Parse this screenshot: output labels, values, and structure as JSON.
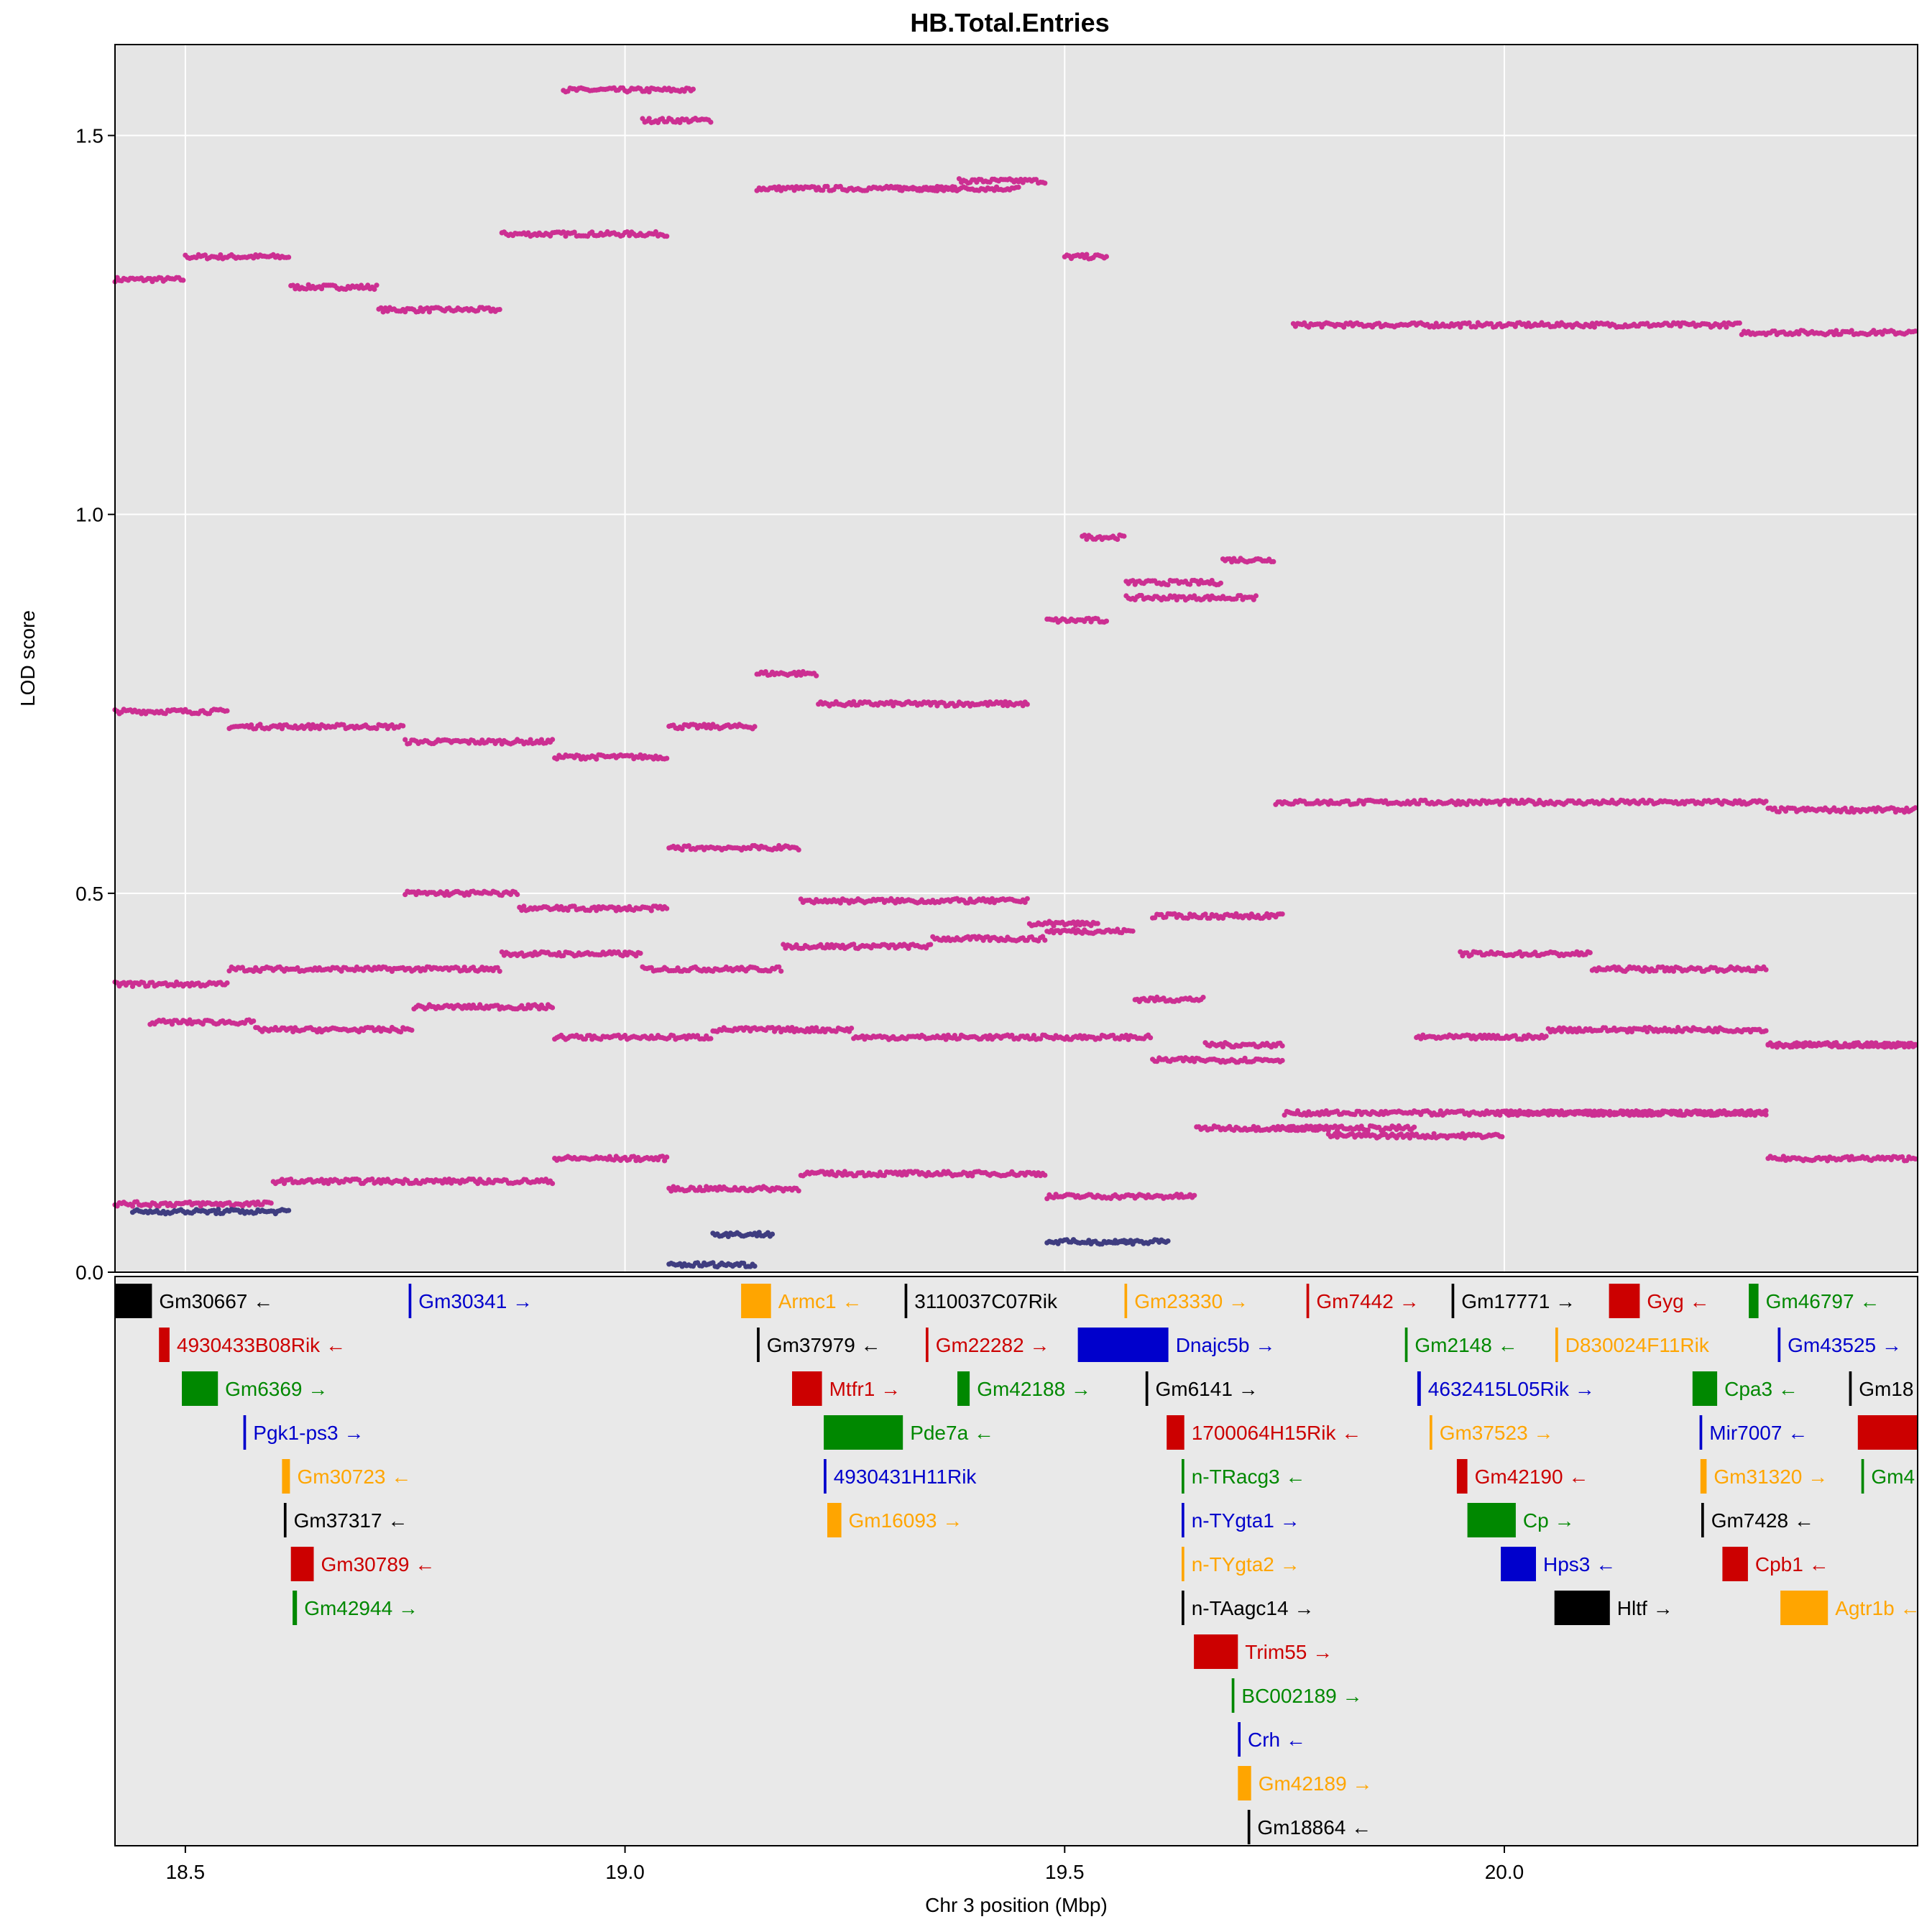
{
  "chart_data": {
    "type": "scatter",
    "title": "HB.Total.Entries",
    "xlabel": "Chr 3 position (Mbp)",
    "ylabel": "LOD score",
    "xlim": [
      18.42,
      20.47
    ],
    "ylim": [
      0,
      1.62
    ],
    "x_ticks": [
      "18.5",
      "19.0",
      "19.5",
      "20.0"
    ],
    "x_tick_values": [
      18.5,
      19.0,
      19.5,
      20.0
    ],
    "y_ticks": [
      "0.0",
      "0.5",
      "1.0",
      "1.5"
    ],
    "y_tick_values": [
      0.0,
      0.5,
      1.0,
      1.5
    ],
    "grid": true,
    "legend": "none",
    "colors": {
      "magenta": "#CC2F92",
      "navy": "#3F3D80",
      "black": "#000000",
      "red": "#CC0000",
      "green": "#008800",
      "blue": "#0000CC",
      "orange": "#FFA500"
    },
    "series": [
      {
        "color": "magenta",
        "segments": [
          [
            18.42,
            18.5,
            1.31
          ],
          [
            18.5,
            18.62,
            1.34
          ],
          [
            18.62,
            18.72,
            1.3
          ],
          [
            18.72,
            18.86,
            1.27
          ],
          [
            18.86,
            19.05,
            1.37
          ],
          [
            18.93,
            19.08,
            1.56
          ],
          [
            19.02,
            19.1,
            1.52
          ],
          [
            19.15,
            19.38,
            1.43
          ],
          [
            19.38,
            19.48,
            1.44
          ],
          [
            19.3,
            19.45,
            1.43
          ],
          [
            19.5,
            19.55,
            1.34
          ],
          [
            19.76,
            20.27,
            1.25
          ],
          [
            20.27,
            20.47,
            1.24
          ],
          [
            18.42,
            18.55,
            0.74
          ],
          [
            18.55,
            18.75,
            0.72
          ],
          [
            18.75,
            18.92,
            0.7
          ],
          [
            18.92,
            19.05,
            0.68
          ],
          [
            19.05,
            19.15,
            0.72
          ],
          [
            19.15,
            19.22,
            0.79
          ],
          [
            19.22,
            19.46,
            0.75
          ],
          [
            19.48,
            19.55,
            0.86
          ],
          [
            19.52,
            19.57,
            0.97
          ],
          [
            19.57,
            19.72,
            0.89
          ],
          [
            19.57,
            19.68,
            0.91
          ],
          [
            19.68,
            19.74,
            0.94
          ],
          [
            19.74,
            20.3,
            0.62
          ],
          [
            20.3,
            20.47,
            0.61
          ],
          [
            18.42,
            18.55,
            0.38
          ],
          [
            18.55,
            18.74,
            0.4
          ],
          [
            18.74,
            18.86,
            0.4
          ],
          [
            18.86,
            19.02,
            0.42
          ],
          [
            19.02,
            19.18,
            0.4
          ],
          [
            19.18,
            19.35,
            0.43
          ],
          [
            19.35,
            19.48,
            0.44
          ],
          [
            19.48,
            19.58,
            0.45
          ],
          [
            19.58,
            19.66,
            0.36
          ],
          [
            19.66,
            19.75,
            0.3
          ],
          [
            19.75,
            19.92,
            0.21
          ],
          [
            19.92,
            20.3,
            0.21
          ],
          [
            20.3,
            20.47,
            0.3
          ],
          [
            18.42,
            18.6,
            0.09
          ],
          [
            18.6,
            18.73,
            0.12
          ],
          [
            18.73,
            18.92,
            0.12
          ],
          [
            18.92,
            19.05,
            0.15
          ],
          [
            19.05,
            19.2,
            0.11
          ],
          [
            19.2,
            19.48,
            0.13
          ],
          [
            19.48,
            19.65,
            0.1
          ],
          [
            19.65,
            19.8,
            0.19
          ],
          [
            19.8,
            20.0,
            0.18
          ],
          [
            20.0,
            20.3,
            0.21
          ],
          [
            20.3,
            20.47,
            0.15
          ],
          [
            18.46,
            18.58,
            0.33
          ],
          [
            18.58,
            18.76,
            0.32
          ],
          [
            18.76,
            18.92,
            0.35
          ],
          [
            18.92,
            19.1,
            0.31
          ],
          [
            19.1,
            19.26,
            0.32
          ],
          [
            19.26,
            19.46,
            0.31
          ],
          [
            19.46,
            19.6,
            0.31
          ],
          [
            19.6,
            19.75,
            0.28
          ],
          [
            19.75,
            19.9,
            0.19
          ],
          [
            19.9,
            20.05,
            0.31
          ],
          [
            20.05,
            20.3,
            0.32
          ],
          [
            20.3,
            20.47,
            0.3
          ],
          [
            18.75,
            18.88,
            0.5
          ],
          [
            18.88,
            19.05,
            0.48
          ],
          [
            19.05,
            19.2,
            0.56
          ],
          [
            19.2,
            19.46,
            0.49
          ],
          [
            19.46,
            19.54,
            0.46
          ],
          [
            19.6,
            19.75,
            0.47
          ],
          [
            19.95,
            20.1,
            0.42
          ],
          [
            20.1,
            20.3,
            0.4
          ]
        ]
      },
      {
        "color": "navy",
        "segments": [
          [
            18.44,
            18.62,
            0.08
          ],
          [
            19.05,
            19.15,
            0.01
          ],
          [
            19.1,
            19.17,
            0.05
          ],
          [
            19.48,
            19.58,
            0.04
          ],
          [
            19.55,
            19.62,
            0.04
          ]
        ]
      }
    ],
    "genes": [
      {
        "name": "Gm30667",
        "start": 18.42,
        "end": 18.462,
        "row": 0,
        "color": "black",
        "arrow": "←"
      },
      {
        "name": "Gm30341",
        "start": 18.754,
        "end": 18.757,
        "row": 0,
        "color": "blue",
        "arrow": "→"
      },
      {
        "name": "Armc1",
        "start": 19.132,
        "end": 19.166,
        "row": 0,
        "color": "orange",
        "arrow": "←"
      },
      {
        "name": "3110037C07Rik",
        "start": 19.318,
        "end": 19.321,
        "row": 0,
        "color": "black",
        "arrow": ""
      },
      {
        "name": "Gm23330",
        "start": 19.568,
        "end": 19.571,
        "row": 0,
        "color": "orange",
        "arrow": "→"
      },
      {
        "name": "Gm7442",
        "start": 19.775,
        "end": 19.778,
        "row": 0,
        "color": "red",
        "arrow": "→"
      },
      {
        "name": "Gm17771",
        "start": 19.94,
        "end": 19.943,
        "row": 0,
        "color": "black",
        "arrow": "→"
      },
      {
        "name": "Gyg",
        "start": 20.119,
        "end": 20.154,
        "row": 0,
        "color": "red",
        "arrow": "←"
      },
      {
        "name": "Gm46797",
        "start": 20.278,
        "end": 20.289,
        "row": 0,
        "color": "green",
        "arrow": "←"
      },
      {
        "name": "4930433B08Rik",
        "start": 18.47,
        "end": 18.482,
        "row": 1,
        "color": "red",
        "arrow": "←"
      },
      {
        "name": "Gm37979",
        "start": 19.15,
        "end": 19.153,
        "row": 1,
        "color": "black",
        "arrow": "←"
      },
      {
        "name": "Gm22282",
        "start": 19.342,
        "end": 19.345,
        "row": 1,
        "color": "red",
        "arrow": "→"
      },
      {
        "name": "Dnajc5b",
        "start": 19.515,
        "end": 19.618,
        "row": 1,
        "color": "blue",
        "arrow": "→"
      },
      {
        "name": "Gm2148",
        "start": 19.887,
        "end": 19.89,
        "row": 1,
        "color": "green",
        "arrow": "←"
      },
      {
        "name": "D830024F11Rik",
        "start": 20.058,
        "end": 20.061,
        "row": 1,
        "color": "orange",
        "arrow": ""
      },
      {
        "name": "Gm43525",
        "start": 20.311,
        "end": 20.314,
        "row": 1,
        "color": "blue",
        "arrow": "→"
      },
      {
        "name": "Gm6369",
        "start": 18.496,
        "end": 18.537,
        "row": 2,
        "color": "green",
        "arrow": "→"
      },
      {
        "name": "Mtfr1",
        "start": 19.19,
        "end": 19.224,
        "row": 2,
        "color": "red",
        "arrow": "→"
      },
      {
        "name": "Gm42188",
        "start": 19.378,
        "end": 19.392,
        "row": 2,
        "color": "green",
        "arrow": "→"
      },
      {
        "name": "Gm6141",
        "start": 19.592,
        "end": 19.595,
        "row": 2,
        "color": "black",
        "arrow": "→"
      },
      {
        "name": "4632415L05Rik",
        "start": 19.901,
        "end": 19.905,
        "row": 2,
        "color": "blue",
        "arrow": "→"
      },
      {
        "name": "Cpa3",
        "start": 20.214,
        "end": 20.242,
        "row": 2,
        "color": "green",
        "arrow": "←"
      },
      {
        "name": "Gm18",
        "start": 20.392,
        "end": 20.395,
        "row": 2,
        "color": "black",
        "arrow": ""
      },
      {
        "name": "Pgk1-ps3",
        "start": 18.566,
        "end": 18.569,
        "row": 3,
        "color": "blue",
        "arrow": "→"
      },
      {
        "name": "Pde7a",
        "start": 19.226,
        "end": 19.316,
        "row": 3,
        "color": "green",
        "arrow": "←"
      },
      {
        "name": "1700064H15Rik",
        "start": 19.616,
        "end": 19.636,
        "row": 3,
        "color": "red",
        "arrow": "←"
      },
      {
        "name": "Gm37523",
        "start": 19.915,
        "end": 19.918,
        "row": 3,
        "color": "orange",
        "arrow": "→"
      },
      {
        "name": "Mir7007",
        "start": 20.222,
        "end": 20.225,
        "row": 3,
        "color": "blue",
        "arrow": "←"
      },
      {
        "name": "Gm30723",
        "start": 18.61,
        "end": 18.619,
        "row": 4,
        "color": "orange",
        "arrow": "←"
      },
      {
        "name": "4930431H11Rik",
        "start": 19.226,
        "end": 19.229,
        "row": 4,
        "color": "blue",
        "arrow": ""
      },
      {
        "name": "n-TRacg3",
        "start": 19.633,
        "end": 19.636,
        "row": 4,
        "color": "green",
        "arrow": "←"
      },
      {
        "name": "Gm42190",
        "start": 19.946,
        "end": 19.958,
        "row": 4,
        "color": "red",
        "arrow": "←"
      },
      {
        "name": "Gm31320",
        "start": 20.223,
        "end": 20.23,
        "row": 4,
        "color": "orange",
        "arrow": "→"
      },
      {
        "name": "Gm4",
        "start": 20.406,
        "end": 20.409,
        "row": 4,
        "color": "green",
        "arrow": ""
      },
      {
        "name": "Gm37317",
        "start": 18.612,
        "end": 18.615,
        "row": 5,
        "color": "black",
        "arrow": "←"
      },
      {
        "name": "Gm16093",
        "start": 19.23,
        "end": 19.246,
        "row": 5,
        "color": "orange",
        "arrow": "→"
      },
      {
        "name": "n-TYgta1",
        "start": 19.633,
        "end": 19.636,
        "row": 5,
        "color": "blue",
        "arrow": "→"
      },
      {
        "name": "Cp",
        "start": 19.958,
        "end": 20.013,
        "row": 5,
        "color": "green",
        "arrow": "→"
      },
      {
        "name": "Gm7428",
        "start": 20.224,
        "end": 20.227,
        "row": 5,
        "color": "black",
        "arrow": "←"
      },
      {
        "name": "Gm30789",
        "start": 18.62,
        "end": 18.646,
        "row": 6,
        "color": "red",
        "arrow": "←"
      },
      {
        "name": "n-TYgta2",
        "start": 19.633,
        "end": 19.636,
        "row": 6,
        "color": "orange",
        "arrow": "→"
      },
      {
        "name": "Hps3",
        "start": 19.996,
        "end": 20.036,
        "row": 6,
        "color": "blue",
        "arrow": "←"
      },
      {
        "name": "Cpb1",
        "start": 20.248,
        "end": 20.277,
        "row": 6,
        "color": "red",
        "arrow": "←"
      },
      {
        "name": "Gm42944",
        "start": 18.622,
        "end": 18.627,
        "row": 7,
        "color": "green",
        "arrow": "→"
      },
      {
        "name": "n-TAagc14",
        "start": 19.633,
        "end": 19.636,
        "row": 7,
        "color": "black",
        "arrow": "→"
      },
      {
        "name": "Hltf",
        "start": 20.057,
        "end": 20.12,
        "row": 7,
        "color": "black",
        "arrow": "→"
      },
      {
        "name": "Agtr1b",
        "start": 20.314,
        "end": 20.368,
        "row": 7,
        "color": "orange",
        "arrow": "←"
      },
      {
        "name": "Trim55",
        "start": 19.647,
        "end": 19.697,
        "row": 8,
        "color": "red",
        "arrow": "→"
      },
      {
        "name": "BC002189",
        "start": 19.69,
        "end": 19.693,
        "row": 9,
        "color": "green",
        "arrow": "→"
      },
      {
        "name": "Crh",
        "start": 19.697,
        "end": 19.7,
        "row": 10,
        "color": "blue",
        "arrow": "←"
      },
      {
        "name": "Gm42189",
        "start": 19.697,
        "end": 19.712,
        "row": 11,
        "color": "orange",
        "arrow": "→"
      },
      {
        "name": "Gm18864",
        "start": 19.708,
        "end": 19.711,
        "row": 12,
        "color": "black",
        "arrow": "←"
      },
      {
        "name": "",
        "start": 20.402,
        "end": 20.47,
        "row": 3,
        "color": "red",
        "arrow": ""
      }
    ]
  }
}
